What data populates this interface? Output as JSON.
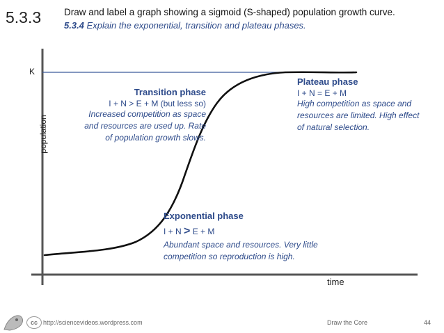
{
  "header": {
    "code": "5.3.3",
    "title": "Draw and label a graph showing a sigmoid (S-shaped) population growth curve.",
    "sub_code": "5.3.4",
    "sub_text": "Explain the exponential, transition and plateau phases."
  },
  "axes": {
    "k_label": "K",
    "y_label": "population",
    "x_label": "time"
  },
  "phases": {
    "transition": {
      "heading": "Transition phase",
      "formula": "I + N > E + M (but less so)",
      "description_lines": [
        "Increased competition as space",
        "and resources are used up. Rate",
        "of population growth slows."
      ]
    },
    "plateau": {
      "heading": "Plateau phase",
      "formula": "I + N = E + M",
      "description_lines": [
        "High competition as space and",
        "resources are limited. High effect",
        "of natural selection."
      ]
    },
    "exponential": {
      "heading": "Exponential phase",
      "formula_left": "I + N",
      "formula_op": ">",
      "formula_right": "E + M",
      "description_lines": [
        "Abundant space and resources. Very little",
        "competition so reproduction is high."
      ]
    }
  },
  "footer": {
    "cc": "cc",
    "url": "http://sciencevideos.wordpress.com",
    "brand": "Draw the Core",
    "page": "44"
  },
  "colors": {
    "accent": "#2d4a8a",
    "k_line": "#3a5a9a",
    "axis": "#555555",
    "curve": "#111111"
  }
}
